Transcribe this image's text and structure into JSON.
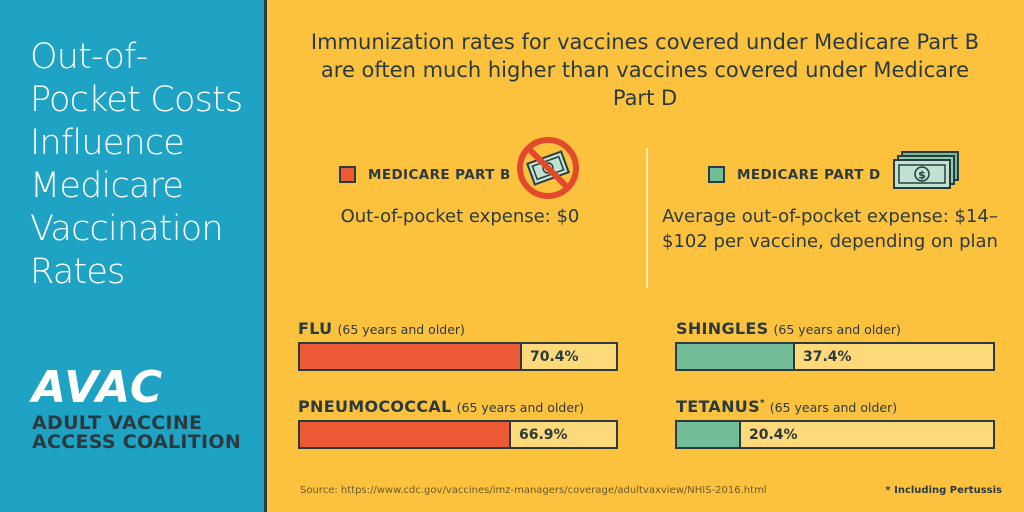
{
  "sidebar": {
    "headline": [
      "Out-of-",
      "Pocket Costs",
      "Influence",
      "Medicare",
      "Vaccination",
      "Rates"
    ],
    "logo_mark": "AVAC",
    "logo_sub": [
      "ADULT VACCINE",
      "ACCESS COALITION"
    ]
  },
  "main": {
    "title": "Immunization rates for vaccines covered under Medicare Part B are often much higher than vaccines covered under Medicare Part D"
  },
  "part_b": {
    "legend": "MEDICARE PART B",
    "expense": "Out-of-pocket expense: $0",
    "icon": "no-money-icon"
  },
  "part_d": {
    "legend": "MEDICARE PART D",
    "expense": "Average out-of-pocket expense: $14–$102 per vaccine, depending on plan",
    "icon": "money-stack-icon"
  },
  "chart_data": {
    "type": "bar",
    "orientation": "horizontal",
    "xlim": [
      0,
      100
    ],
    "categories": [
      "FLU",
      "PNEUMOCOCCAL",
      "SHINGLES",
      "TETANUS"
    ],
    "notes": [
      "(65 years and older)",
      "(65 years and older)",
      "(65 years and older)",
      "(65 years and older)"
    ],
    "values": [
      70.4,
      66.9,
      37.4,
      20.4
    ],
    "value_labels": [
      "70.4%",
      "66.9%",
      "37.4%",
      "20.4%"
    ],
    "groups": [
      "MEDICARE PART B",
      "MEDICARE PART B",
      "MEDICARE PART D",
      "MEDICARE PART D"
    ],
    "colors": {
      "MEDICARE PART B": "#ec5a35",
      "MEDICARE PART D": "#72bd98"
    }
  },
  "tetanus_marker": "*",
  "source": "Source: https://www.cdc.gov/vaccines/imz-managers/coverage/adultvaxview/NHIS-2016.html",
  "footnote": "* Including Pertussis",
  "colors": {
    "sidebar": "#1fa3c4",
    "background": "#fcc23d",
    "text": "#2b3a3f"
  }
}
